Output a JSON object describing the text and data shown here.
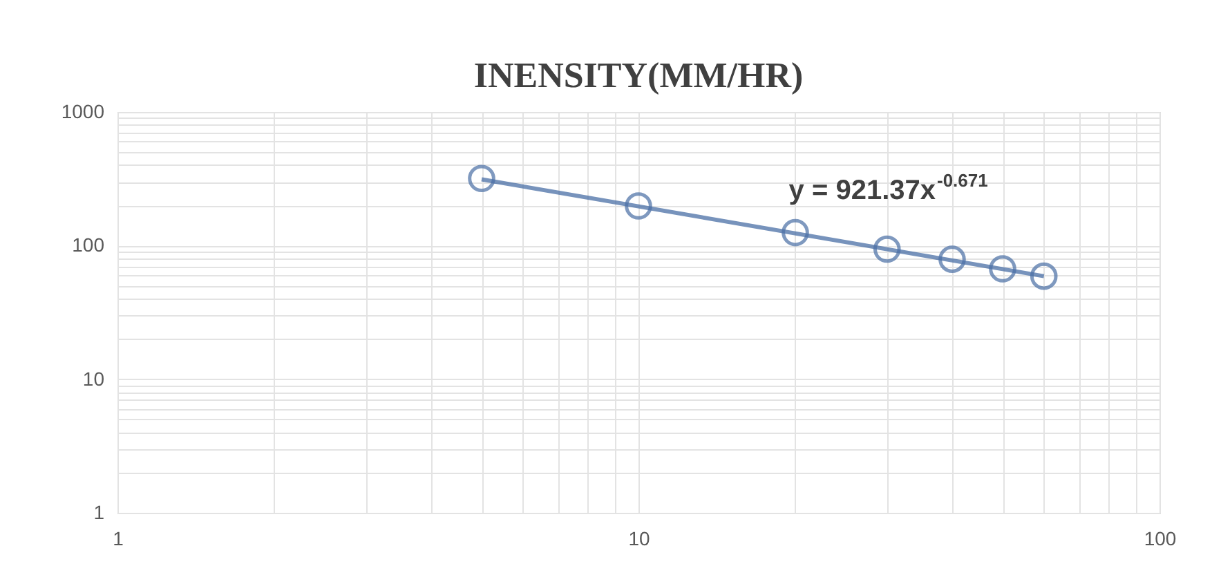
{
  "chart_data": {
    "type": "scatter",
    "title": "INENSITY(MM/HR)",
    "x": [
      5,
      10,
      20,
      30,
      40,
      50,
      60
    ],
    "series": [
      {
        "color": "#4a6fa5",
        "values": [
          318,
          198,
          125,
          94,
          79,
          67,
          59
        ]
      },
      {
        "type": "line",
        "marker": "none",
        "color": "#4a6fa5",
        "x": [
          5,
          60
        ],
        "values": [
          313,
          59
        ]
      }
    ],
    "log": "xy",
    "marker": "circle",
    "grid": true,
    "xlim": [
      1,
      100
    ],
    "ylim": [
      1,
      1000
    ],
    "xticks": [
      1,
      {
        "value": 2,
        "label": null
      },
      {
        "value": 3,
        "label": null
      },
      {
        "value": 4,
        "label": null
      },
      {
        "value": 5,
        "label": null
      },
      {
        "value": 6,
        "label": null
      },
      {
        "value": 7,
        "label": null
      },
      {
        "value": 8,
        "label": null
      },
      {
        "value": 9,
        "label": null
      },
      10,
      {
        "value": 20,
        "label": null
      },
      {
        "value": 30,
        "label": null
      },
      {
        "value": 40,
        "label": null
      },
      {
        "value": 50,
        "label": null
      },
      {
        "value": 60,
        "label": null
      },
      {
        "value": 70,
        "label": null
      },
      {
        "value": 80,
        "label": null
      },
      {
        "value": 90,
        "label": null
      },
      100
    ],
    "yticks": [
      1,
      {
        "value": 2,
        "label": null
      },
      {
        "value": 3,
        "label": null
      },
      {
        "value": 4,
        "label": null
      },
      {
        "value": 5,
        "label": null
      },
      {
        "value": 6,
        "label": null
      },
      {
        "value": 7,
        "label": null
      },
      {
        "value": 8,
        "label": null
      },
      {
        "value": 9,
        "label": null
      },
      10,
      {
        "value": 20,
        "label": null
      },
      {
        "value": 30,
        "label": null
      },
      {
        "value": 40,
        "label": null
      },
      {
        "value": 50,
        "label": null
      },
      {
        "value": 60,
        "label": null
      },
      {
        "value": 70,
        "label": null
      },
      {
        "value": 80,
        "label": null
      },
      {
        "value": 90,
        "label": null
      },
      100,
      {
        "value": 200,
        "label": null
      },
      {
        "value": 300,
        "label": null
      },
      {
        "value": 400,
        "label": null
      },
      {
        "value": 500,
        "label": null
      },
      {
        "value": 600,
        "label": null
      },
      {
        "value": 700,
        "label": null
      },
      {
        "value": 800,
        "label": null
      },
      {
        "value": 900,
        "label": null
      },
      1000
    ],
    "annotations": [
      "y = 921.37x$^{-0.671}$"
    ]
  }
}
